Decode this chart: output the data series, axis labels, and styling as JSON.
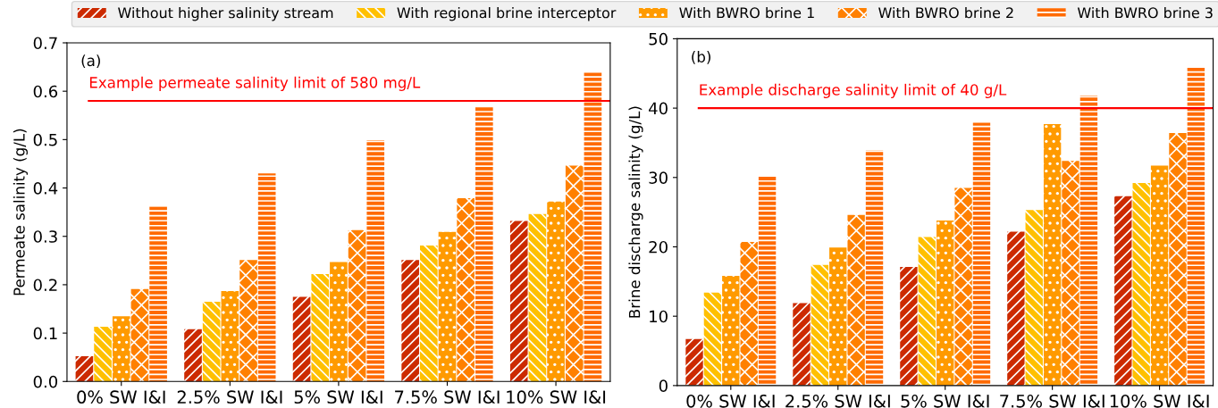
{
  "chart_data": [
    {
      "type": "bar",
      "title": "(a)",
      "ylabel": "Permeate salinity (g/L)",
      "categories": [
        "0% SW I&I",
        "2.5% SW I&I",
        "5% SW I&I",
        "7.5% SW I&I",
        "10% SW I&I"
      ],
      "series": [
        {
          "name": "Without higher salinity stream",
          "color": "#cc2a00",
          "values": [
            0.052,
            0.108,
            0.175,
            0.251,
            0.332
          ]
        },
        {
          "name": "With regional brine interceptor",
          "color": "#ffc000",
          "values": [
            0.113,
            0.165,
            0.222,
            0.281,
            0.346
          ]
        },
        {
          "name": "With BWRO brine 1",
          "color": "#ff9a00",
          "values": [
            0.135,
            0.187,
            0.247,
            0.309,
            0.372
          ]
        },
        {
          "name": "With BWRO brine 2",
          "color": "#ff8000",
          "values": [
            0.191,
            0.251,
            0.313,
            0.379,
            0.446
          ]
        },
        {
          "name": "With BWRO brine 3",
          "color": "#ff6a00",
          "values": [
            0.362,
            0.43,
            0.499,
            0.569,
            0.64
          ]
        }
      ],
      "ylim": [
        0,
        0.7
      ],
      "yticks": [
        {
          "value": 0,
          "label": "0.0"
        },
        0.1,
        0.2,
        0.3,
        0.4,
        0.5,
        0.6,
        0.7
      ],
      "ref_lines": [
        {
          "axis": "y",
          "value": 0.58,
          "label": "Example permeate salinity limit of 580 mg/L",
          "color": "#ff0000"
        }
      ],
      "legend": "top",
      "grid": false
    },
    {
      "type": "bar",
      "title": "(b)",
      "ylabel": "Brine discharge salinity (g/L)",
      "categories": [
        "0% SW I&I",
        "2.5% SW I&I",
        "5% SW I&I",
        "7.5% SW I&I",
        "10% SW I&I"
      ],
      "series": [
        {
          "color": "#cc2a00",
          "values": [
            6.7,
            11.9,
            17.1,
            22.2,
            27.3
          ]
        },
        {
          "color": "#ffc000",
          "values": [
            13.4,
            17.4,
            21.4,
            25.3,
            29.2
          ]
        },
        {
          "color": "#ff9a00",
          "values": [
            15.8,
            19.9,
            23.8,
            37.7,
            31.7
          ]
        },
        {
          "color": "#ff8000",
          "values": [
            20.7,
            24.6,
            28.5,
            32.4,
            36.4
          ]
        },
        {
          "color": "#ff6a00",
          "values": [
            30.2,
            33.9,
            37.9,
            41.8,
            45.8
          ]
        }
      ],
      "ylim": [
        0,
        50
      ],
      "yticks": [
        0,
        10,
        20,
        30,
        40,
        50
      ],
      "ref_lines": [
        {
          "axis": "y",
          "value": 40,
          "label": "Example discharge salinity limit of 40 g/L",
          "color": "#ff0000"
        }
      ],
      "grid": false
    }
  ]
}
